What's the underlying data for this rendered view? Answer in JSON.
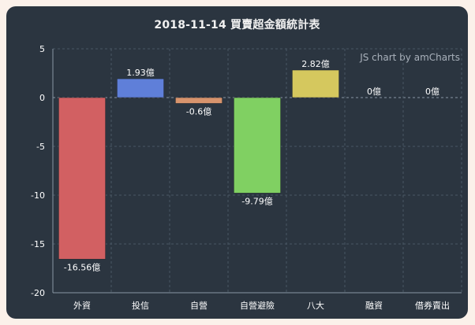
{
  "chart_data": {
    "type": "bar",
    "title": "2018-11-14 買賣超金額統計表",
    "categories": [
      "外資",
      "投信",
      "自營",
      "自營避險",
      "八大",
      "融資",
      "借券賣出"
    ],
    "values": [
      -16.56,
      1.93,
      -0.6,
      -9.79,
      2.82,
      0,
      0
    ],
    "data_labels": [
      "-16.56億",
      "1.93億",
      "-0.6億",
      "-9.79億",
      "2.82億",
      "0億",
      "0億"
    ],
    "colors": [
      "#d26062",
      "#5f7fd9",
      "#d8946d",
      "#80d062",
      "#d5c85e",
      "#6fc3df",
      "#c17fdc"
    ],
    "ylim": [
      -20,
      5
    ],
    "yticks": [
      5,
      0,
      -5,
      -10,
      -15,
      -20
    ],
    "xlabel": "",
    "ylabel": "",
    "grid": true,
    "legend": "none",
    "credit": "JS chart by amCharts"
  }
}
